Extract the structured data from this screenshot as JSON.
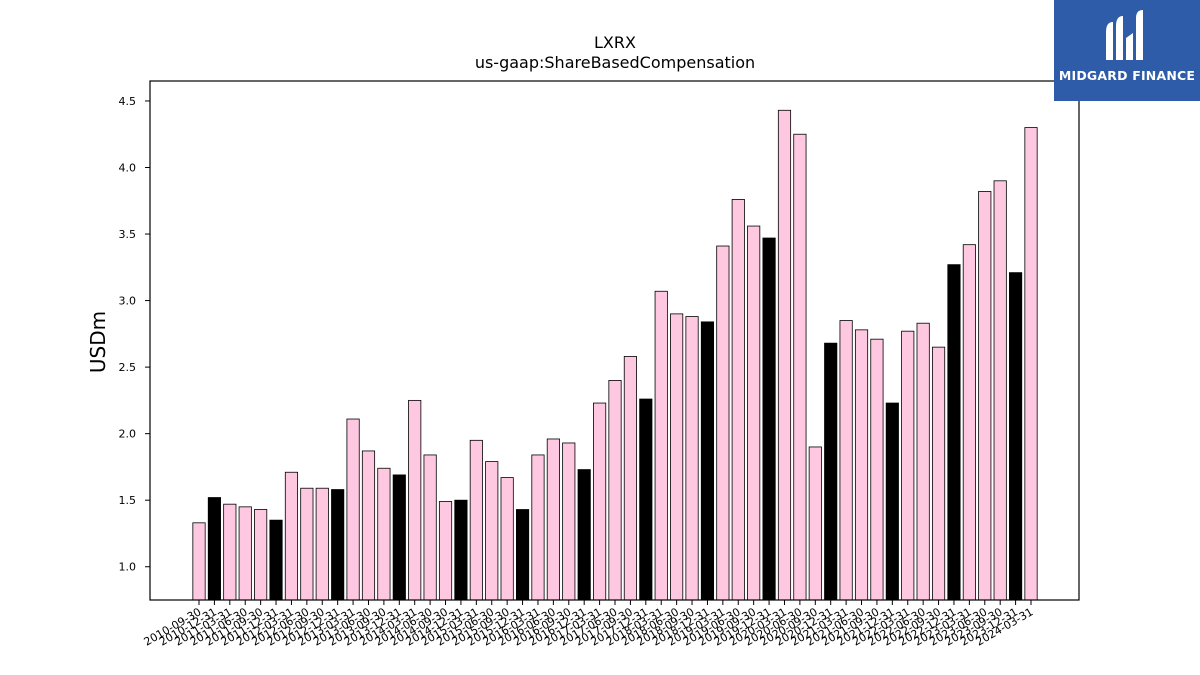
{
  "logo": {
    "text": "MIDGARD FINANCE",
    "icon": "midgard-logo-icon"
  },
  "colors": {
    "annual": "#000000",
    "quarterly": "#ffc8e1",
    "edge": "#000000",
    "logo_bg": "#2e5ca8"
  },
  "chart_data": {
    "type": "bar",
    "title": "LXRX",
    "subtitle": "us-gaap:ShareBasedCompensation",
    "xlabel": "",
    "ylabel": "USDm",
    "ylim": [
      0.75,
      4.65
    ],
    "yticks": [
      1.0,
      1.5,
      2.0,
      2.5,
      3.0,
      3.5,
      4.0,
      4.5
    ],
    "ytick_labels": [
      "1.0",
      "1.5",
      "2.0",
      "2.5",
      "3.0",
      "3.5",
      "4.0",
      "4.5"
    ],
    "grid": false,
    "categories": [
      "2010-09-30",
      "2010-12-31",
      "2011-03-31",
      "2011-06-30",
      "2011-09-30",
      "2011-12-31",
      "2012-03-31",
      "2012-06-30",
      "2012-09-30",
      "2012-12-31",
      "2013-03-31",
      "2013-06-30",
      "2013-09-30",
      "2013-12-31",
      "2014-03-31",
      "2014-06-30",
      "2014-09-30",
      "2014-12-31",
      "2015-03-31",
      "2015-06-30",
      "2015-09-30",
      "2015-12-31",
      "2016-03-31",
      "2016-06-30",
      "2016-09-30",
      "2016-12-31",
      "2017-03-31",
      "2017-06-30",
      "2017-09-30",
      "2017-12-31",
      "2018-03-31",
      "2018-06-30",
      "2018-09-30",
      "2018-12-31",
      "2019-03-31",
      "2019-06-30",
      "2019-09-30",
      "2019-12-31",
      "2020-03-31",
      "2020-06-30",
      "2020-09-30",
      "2020-12-31",
      "2021-03-31",
      "2021-06-30",
      "2021-09-30",
      "2021-12-31",
      "2022-03-31",
      "2022-06-30",
      "2022-09-30",
      "2022-12-31",
      "2023-03-31",
      "2023-06-30",
      "2023-09-30",
      "2023-12-31",
      "2024-03-31"
    ],
    "values": [
      1.33,
      1.52,
      1.47,
      1.45,
      1.43,
      1.35,
      1.71,
      1.59,
      1.59,
      1.58,
      2.11,
      1.87,
      1.74,
      1.69,
      2.25,
      1.84,
      1.49,
      1.5,
      1.95,
      1.79,
      1.67,
      1.43,
      1.84,
      1.96,
      1.93,
      1.73,
      2.23,
      2.4,
      2.58,
      2.26,
      3.07,
      2.9,
      2.88,
      2.84,
      3.41,
      3.76,
      3.56,
      3.47,
      4.43,
      4.25,
      1.9,
      2.68,
      2.85,
      2.78,
      2.71,
      2.23,
      2.77,
      2.83,
      2.65,
      3.27,
      3.42,
      3.82,
      3.9,
      3.21,
      4.3
    ],
    "annual_flags": [
      0,
      1,
      0,
      0,
      0,
      1,
      0,
      0,
      0,
      1,
      0,
      0,
      0,
      1,
      0,
      0,
      0,
      1,
      0,
      0,
      0,
      1,
      0,
      0,
      0,
      1,
      0,
      0,
      0,
      1,
      0,
      0,
      0,
      1,
      0,
      0,
      0,
      1,
      0,
      0,
      0,
      1,
      0,
      0,
      0,
      1,
      0,
      0,
      0,
      1,
      0,
      0,
      0,
      1,
      0
    ]
  }
}
